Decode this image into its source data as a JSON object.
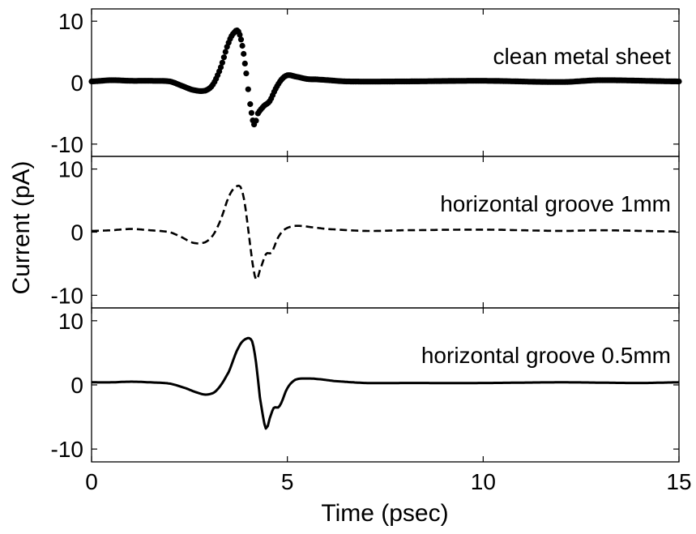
{
  "chart_data": {
    "type": "line",
    "xlabel": "Time (psec)",
    "ylabel": "Current (pA)",
    "xlim": [
      0,
      15
    ],
    "ylim": [
      -12,
      12
    ],
    "x_ticks": [
      0,
      5,
      10,
      15
    ],
    "y_ticks": [
      -10,
      0,
      10
    ],
    "grid": false,
    "panels": [
      {
        "label": "clean metal sheet",
        "line_style": "dots",
        "color": "#000000",
        "x": [
          0,
          0.5,
          1.0,
          1.5,
          2.0,
          2.3,
          2.6,
          2.9,
          3.1,
          3.3,
          3.5,
          3.65,
          3.75,
          3.85,
          3.95,
          4.05,
          4.15,
          4.25,
          4.4,
          4.55,
          4.7,
          4.85,
          5.0,
          5.2,
          5.5,
          5.8,
          6.5,
          8,
          10,
          12,
          13,
          15
        ],
        "y": [
          0.2,
          0.4,
          0.3,
          0.3,
          0.2,
          -0.5,
          -1.2,
          -1.3,
          -0.3,
          2.5,
          6.5,
          8.2,
          8.3,
          6.0,
          1.5,
          -3.5,
          -6.8,
          -5.0,
          -3.8,
          -3.0,
          -1.0,
          0.5,
          1.2,
          1.0,
          0.6,
          0.5,
          0.2,
          0.2,
          0.3,
          0.1,
          0.4,
          0.2
        ]
      },
      {
        "label": "horizontal groove 1mm",
        "line_style": "dashed",
        "color": "#000000",
        "x": [
          0,
          0.5,
          1.0,
          1.5,
          2.0,
          2.3,
          2.6,
          2.9,
          3.1,
          3.3,
          3.5,
          3.65,
          3.8,
          3.9,
          4.0,
          4.1,
          4.2,
          4.3,
          4.45,
          4.6,
          4.75,
          4.9,
          5.1,
          5.3,
          5.6,
          6.0,
          7,
          8,
          10,
          12,
          13,
          15
        ],
        "y": [
          0.2,
          0.3,
          0.5,
          0.3,
          0.0,
          -0.8,
          -1.7,
          -1.6,
          -0.5,
          2.0,
          5.5,
          7.0,
          7.2,
          5.0,
          0.5,
          -4.5,
          -7.5,
          -6.0,
          -3.5,
          -3.2,
          -1.0,
          0.3,
          0.9,
          1.0,
          0.8,
          0.5,
          0.2,
          0.3,
          0.4,
          0.2,
          0.3,
          0.1
        ]
      },
      {
        "label": "horizontal groove 0.5mm",
        "line_style": "solid",
        "color": "#000000",
        "x": [
          0,
          0.5,
          1.0,
          1.5,
          2.0,
          2.4,
          2.7,
          2.95,
          3.2,
          3.5,
          3.75,
          3.95,
          4.1,
          4.2,
          4.3,
          4.45,
          4.55,
          4.65,
          4.8,
          5.0,
          5.2,
          5.5,
          5.8,
          6.2,
          7,
          8,
          10,
          12,
          14,
          15
        ],
        "y": [
          0.4,
          0.4,
          0.5,
          0.4,
          0.2,
          -0.5,
          -1.2,
          -1.5,
          -0.8,
          2.0,
          5.8,
          7.2,
          6.8,
          3.5,
          -2.0,
          -6.8,
          -5.2,
          -3.6,
          -3.3,
          -0.5,
          0.8,
          1.0,
          0.9,
          0.6,
          0.3,
          0.3,
          0.3,
          0.4,
          0.3,
          0.4
        ]
      }
    ]
  }
}
